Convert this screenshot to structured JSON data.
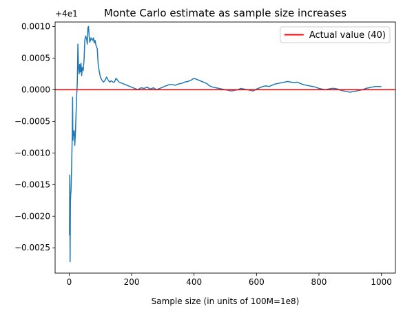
{
  "chart_data": {
    "type": "line",
    "title": "Monte Carlo estimate as sample size increases",
    "xlabel": "Sample size (in units of 100M=1e8)",
    "ylabel": "",
    "offset_label": "+4e1",
    "xlim": [
      -45,
      1045
    ],
    "ylim": [
      -0.0029,
      0.00107
    ],
    "x_ticks": [
      0,
      200,
      400,
      600,
      800,
      1000
    ],
    "x_tick_labels": [
      "0",
      "200",
      "400",
      "600",
      "800",
      "1000"
    ],
    "y_ticks": [
      0.001,
      0.0005,
      0.0,
      -0.0005,
      -0.001,
      -0.0015,
      -0.002,
      -0.0025
    ],
    "y_tick_labels": [
      "0.0010",
      "0.0005",
      "0.0000",
      "−0.0005",
      "−0.0010",
      "−0.0015",
      "−0.0020",
      "−0.0025"
    ],
    "grid": false,
    "legend": {
      "placement": "top-right"
    },
    "reference_line": {
      "name": "Actual value (40)",
      "y": 0.0,
      "color": "#ff0000"
    },
    "series": [
      {
        "color": "#1f77b4",
        "x": [
          1,
          2,
          3,
          4,
          5,
          6,
          8,
          10,
          11,
          12,
          13,
          14,
          16,
          18,
          20,
          22,
          24,
          26,
          27,
          28,
          30,
          32,
          34,
          36,
          38,
          40,
          42,
          45,
          48,
          50,
          53,
          56,
          58,
          60,
          62,
          64,
          66,
          68,
          70,
          72,
          75,
          78,
          80,
          83,
          86,
          90,
          93,
          96,
          100,
          105,
          110,
          115,
          120,
          125,
          130,
          135,
          140,
          145,
          150,
          160,
          170,
          180,
          190,
          200,
          210,
          220,
          230,
          240,
          250,
          260,
          270,
          280,
          290,
          300,
          310,
          320,
          330,
          340,
          350,
          360,
          370,
          380,
          390,
          400,
          410,
          420,
          430,
          440,
          450,
          460,
          470,
          480,
          490,
          500,
          510,
          520,
          530,
          540,
          550,
          560,
          570,
          580,
          590,
          600,
          610,
          620,
          630,
          640,
          650,
          660,
          670,
          680,
          690,
          700,
          710,
          720,
          730,
          740,
          750,
          760,
          770,
          780,
          790,
          800,
          810,
          820,
          830,
          840,
          850,
          860,
          870,
          880,
          890,
          900,
          910,
          920,
          930,
          940,
          950,
          960,
          970,
          980,
          990,
          1000
        ],
        "y": [
          -0.0023,
          -0.00135,
          -0.00272,
          -0.0018,
          -0.00165,
          -0.0016,
          -0.0012,
          -0.00068,
          -0.00012,
          -0.0008,
          -0.00065,
          -0.00072,
          -0.00065,
          -0.00088,
          -0.0007,
          -0.0004,
          -0.0001,
          0.0001,
          0.0004,
          0.00072,
          0.00035,
          0.00025,
          0.0004,
          0.00028,
          0.00042,
          0.00022,
          0.00035,
          0.0003,
          0.0005,
          0.00078,
          0.00085,
          0.0008,
          0.00072,
          0.00098,
          0.001,
          0.00085,
          0.00075,
          0.00078,
          0.00082,
          0.0008,
          0.00078,
          0.00082,
          0.00074,
          0.00078,
          0.0007,
          0.00065,
          0.0004,
          0.0003,
          0.0002,
          0.00015,
          0.00012,
          0.00015,
          0.0002,
          0.00015,
          0.00012,
          0.00014,
          0.00012,
          0.00012,
          0.00018,
          0.00012,
          0.0001,
          8e-05,
          6e-05,
          4e-05,
          2e-05,
          0.0,
          3e-05,
          2e-05,
          4e-05,
          1e-05,
          3e-05,
          0.0,
          2e-05,
          4e-05,
          6e-05,
          8e-05,
          8e-05,
          7e-05,
          9e-05,
          0.0001,
          0.00012,
          0.00013,
          0.00015,
          0.00018,
          0.00016,
          0.00014,
          0.00012,
          0.0001,
          6e-05,
          4e-05,
          3e-05,
          2e-05,
          1e-05,
          0.0,
          -1e-05,
          -2e-05,
          -1e-05,
          0.0,
          2e-05,
          1e-05,
          0.0,
          -1e-05,
          -2e-05,
          1e-05,
          3e-05,
          5e-05,
          6e-05,
          5e-05,
          7e-05,
          9e-05,
          0.0001,
          0.00011,
          0.00012,
          0.00013,
          0.00012,
          0.00011,
          0.00012,
          0.0001,
          8e-05,
          7e-05,
          6e-05,
          5e-05,
          4e-05,
          2e-05,
          1e-05,
          0.0,
          1e-05,
          2e-05,
          2e-05,
          1e-05,
          -1e-05,
          -2e-05,
          -3e-05,
          -4e-05,
          -3e-05,
          -2e-05,
          -1e-05,
          0.0,
          2e-05,
          3e-05,
          4e-05,
          5e-05,
          5e-05,
          5e-05
        ]
      }
    ]
  }
}
